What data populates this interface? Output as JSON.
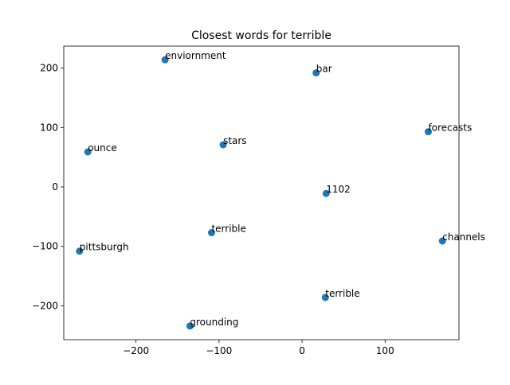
{
  "chart_data": {
    "type": "scatter",
    "title": "Closest words for terrible",
    "xlabel": "",
    "ylabel": "",
    "xlim": [
      -287,
      189
    ],
    "ylim": [
      -257,
      237
    ],
    "xticks": [
      -200,
      -100,
      0,
      100
    ],
    "yticks": [
      -200,
      -100,
      0,
      100,
      200
    ],
    "xtick_labels": [
      "−200",
      "−100",
      "0",
      "100"
    ],
    "ytick_labels": [
      "−200",
      "−100",
      "0",
      "100",
      "200"
    ],
    "grid": false,
    "marker_color": "#1f77b4",
    "points": [
      {
        "label": "enviornment",
        "x": -165,
        "y": 214
      },
      {
        "label": "bar",
        "x": 17,
        "y": 192
      },
      {
        "label": "forecasts",
        "x": 152,
        "y": 93
      },
      {
        "label": "ounce",
        "x": -258,
        "y": 59
      },
      {
        "label": "stars",
        "x": -95,
        "y": 71
      },
      {
        "label": "1102",
        "x": 29,
        "y": -11
      },
      {
        "label": "terrible",
        "x": -109,
        "y": -77
      },
      {
        "label": "channels",
        "x": 169,
        "y": -91
      },
      {
        "label": "pittsburgh",
        "x": -268,
        "y": -108
      },
      {
        "label": "terrible",
        "x": 28,
        "y": -186
      },
      {
        "label": "grounding",
        "x": -135,
        "y": -234
      }
    ]
  }
}
